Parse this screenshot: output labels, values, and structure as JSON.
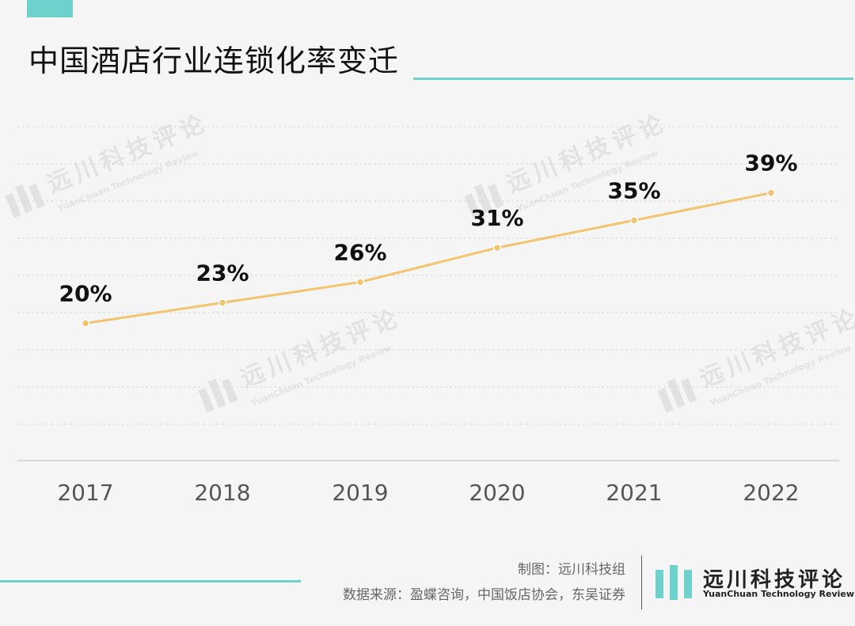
{
  "header": {
    "title": "中国酒店行业连锁化率变迁"
  },
  "footer": {
    "credit": "制图：远川科技组",
    "source": "数据来源：盈蝶咨询，中国饭店协会，东吴证券"
  },
  "brand": {
    "name": "远川科技评论",
    "subtitle": "YuanChuan Technology Review"
  },
  "colors": {
    "accent": "#6fd1cc",
    "line": "#f2c46d",
    "grid": "#d6d6d6",
    "label": "#111111",
    "axis_text": "#555555"
  },
  "chart_data": {
    "type": "line",
    "title": "中国酒店行业连锁化率变迁",
    "xlabel": "",
    "ylabel": "",
    "categories": [
      "2017",
      "2018",
      "2019",
      "2020",
      "2021",
      "2022"
    ],
    "series": [
      {
        "values": [
          20,
          23,
          26,
          31,
          35,
          39
        ],
        "labels": [
          "20%",
          "23%",
          "26%",
          "31%",
          "35%",
          "39%"
        ]
      }
    ],
    "ylim": [
      0,
      45
    ],
    "grid": true,
    "legend": "none"
  }
}
